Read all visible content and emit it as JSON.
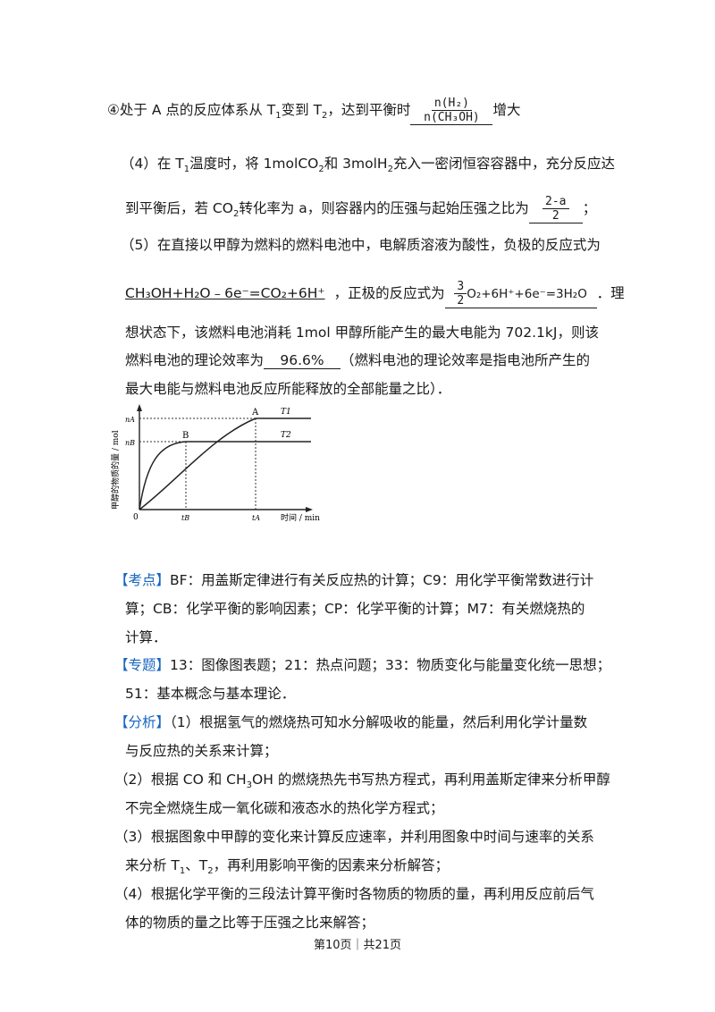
{
  "q4_line": {
    "num": "④",
    "t1": "处于 A 点的反应体系从 T",
    "t1_sub": "1",
    "t2": "变到 T",
    "t2_sub": "2",
    "t3": "，达到平衡时",
    "frac_num": "n(H₂)",
    "frac_den": "n(CH₃OH)",
    "t4": "增大"
  },
  "p4": {
    "l1_a": "（4）在 T",
    "l1_sub1": "1",
    "l1_b": "温度时，将 1molCO",
    "l1_sub2": "2",
    "l1_c": "和 3molH",
    "l1_sub3": "2",
    "l1_d": "充入一密闭恒容容器中，充分反应达",
    "l2_a": "到平衡后，若 CO",
    "l2_sub": "2",
    "l2_b": "转化率为 a，则容器内的压强与起始压强之比为",
    "frac_num": "2-a",
    "frac_den": "2",
    "l2_c": "；"
  },
  "p5": {
    "l1": "（5）在直接以甲醇为燃料的燃料电池中，电解质溶液为酸性，负极的反应式为",
    "eq1": "CH₃OH+H₂O﹣6e⁻=CO₂+6H⁺",
    "l2_mid": "，正极的反应式为",
    "eq2_num": "3",
    "eq2_den": "2",
    "eq2_rest": "O₂+6H⁺+6e⁻=3H₂O",
    "l2_end": "．理",
    "l3": "想状态下，该燃料电池消耗 1mol 甲醇所能产生的最大电能为 702.1kJ，则该",
    "l4_a": "燃料电池的理论效率为",
    "eff": "96.6%",
    "l4_b": "（燃料电池的理论效率是指电池所产生的",
    "l5": "最大电能与燃料电池反应所能释放的全部能量之比）．"
  },
  "chart": {
    "ylabel": "甲醇的物质的量 / mol",
    "xlabel": "时间 / min",
    "origin": "0",
    "y_ticks": [
      "nA",
      "nB"
    ],
    "x_ticks": [
      "tB",
      "tA"
    ],
    "point_a": "A",
    "point_b": "B",
    "curve_t1": "T1",
    "curve_t2": "T2"
  },
  "chart_data": {
    "type": "line",
    "title": "",
    "xlabel": "时间 / min",
    "ylabel": "甲醇的物质的量 / mol",
    "x_ticks": [
      "0",
      "tB",
      "tA"
    ],
    "y_ticks": [
      "nA",
      "nB"
    ],
    "series": [
      {
        "name": "T1",
        "x": [
          0,
          1,
          2,
          3,
          3.95,
          5.5
        ],
        "y": [
          0,
          0.3,
          0.58,
          0.82,
          1.0,
          1.0
        ]
      },
      {
        "name": "T2",
        "x": [
          0,
          0.3,
          0.7,
          1.1,
          1.6,
          5.5
        ],
        "y": [
          0,
          0.45,
          0.68,
          0.8,
          0.82,
          0.82
        ]
      }
    ],
    "points": [
      {
        "label": "A",
        "x": 3.95,
        "y": 1.0
      },
      {
        "label": "B",
        "x": 1.6,
        "y": 0.82
      }
    ]
  },
  "analysis": {
    "kaodian_tag": "【考点】",
    "kaodian_l1": "BF：用盖斯定律进行有关反应热的计算；C9：用化学平衡常数进行计",
    "kaodian_l2": "算；CB：化学平衡的影响因素；CP：化学平衡的计算；M7：有关燃烧热的",
    "kaodian_l3": "计算．",
    "zhuanti_tag": "【专题】",
    "zhuanti_l1": "13：图像图表题；21：热点问题；33：物质变化与能量变化统一思想；",
    "zhuanti_l2": "51：基本概念与基本理论．",
    "fenxi_tag": "【分析】",
    "fenxi_l1": "（1）根据氢气的燃烧热可知水分解吸收的能量，然后利用化学计量数",
    "fenxi_l2": "与反应热的关系来计算；",
    "fenxi_l3a": "（2）根据 CO 和 CH",
    "fenxi_l3sub": "3",
    "fenxi_l3b": "OH 的燃烧热先书写热方程式，再利用盖斯定律来分析甲醇",
    "fenxi_l4": "不完全燃烧生成一氧化碳和液态水的热化学方程式；",
    "fenxi_l5": "（3）根据图象中甲醇的变化来计算反应速率，并利用图象中时间与速率的关系",
    "fenxi_l6a": "来分析 T",
    "fenxi_l6sub1": "1",
    "fenxi_l6b": "、T",
    "fenxi_l6sub2": "2",
    "fenxi_l6c": "，再利用影响平衡的因素来分析解答；",
    "fenxi_l7": "（4）根据化学平衡的三段法计算平衡时各物质的物质的量，再利用反应前后气",
    "fenxi_l8": "体的物质的量之比等于压强之比来解答；"
  },
  "footer": "第10页｜共21页"
}
